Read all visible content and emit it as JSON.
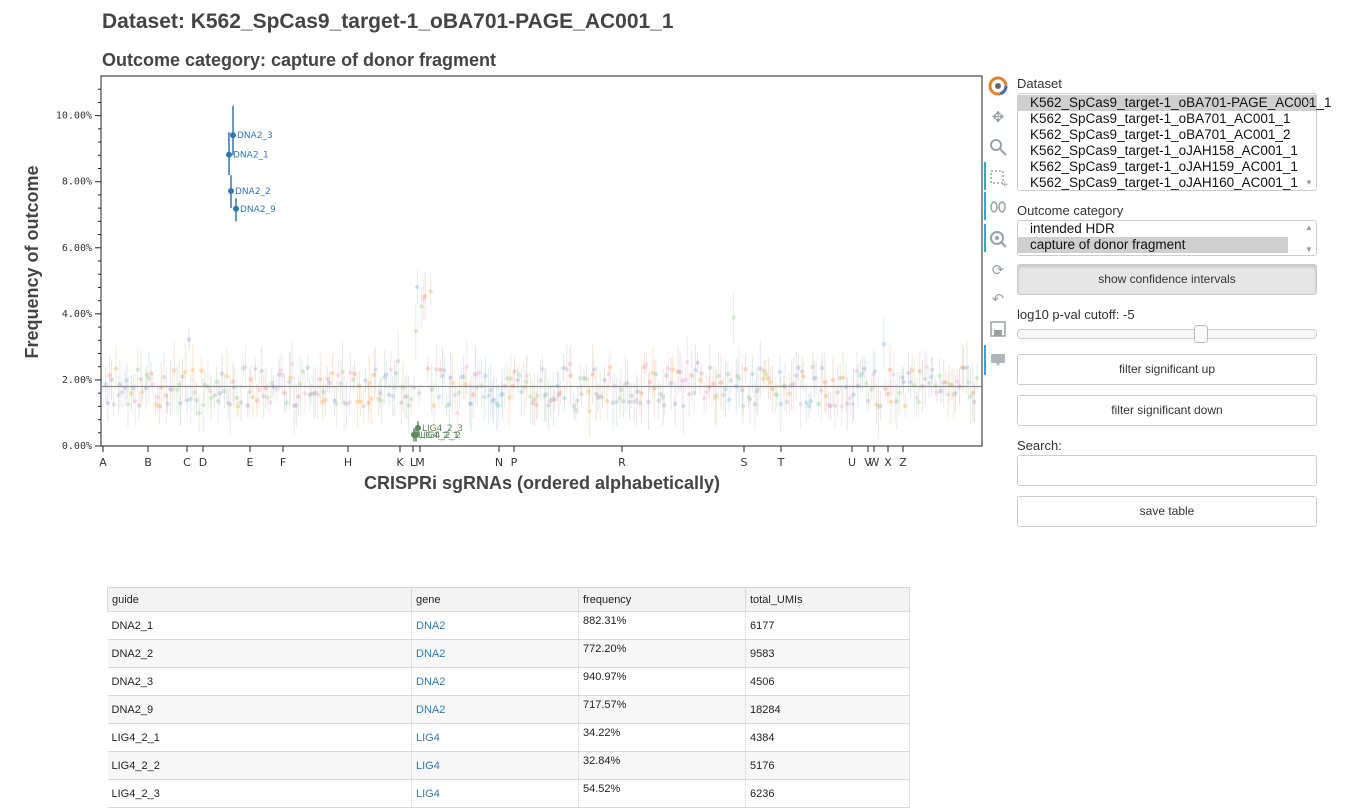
{
  "header": {
    "dataset_title": "Dataset: K562_SpCas9_target-1_oBA701-PAGE_AC001_1",
    "outcome_title": "Outcome category: capture of donor fragment"
  },
  "chart_data": {
    "type": "scatter",
    "ylabel": "Frequency of outcome",
    "xlabel": "CRISPRi sgRNAs (ordered alphabetically)",
    "ylim": [
      0.0,
      11.2
    ],
    "yticks": [
      "0.00%",
      "2.00%",
      "4.00%",
      "6.00%",
      "8.00%",
      "10.00%"
    ],
    "x_letter_ticks": [
      "A",
      "B",
      "C",
      "D",
      "E",
      "F",
      "H",
      "K",
      "L",
      "M",
      "N",
      "P",
      "R",
      "S",
      "T",
      "U",
      "V",
      "W",
      "X",
      "Z"
    ],
    "baseline": 1.8,
    "highlighted_up": [
      {
        "label": "DNA2_3",
        "y": 9.41,
        "ci": [
          8.8,
          10.3
        ]
      },
      {
        "label": "DNA2_1",
        "y": 8.82,
        "ci": [
          8.2,
          9.5
        ]
      },
      {
        "label": "DNA2_2",
        "y": 7.72,
        "ci": [
          7.2,
          8.2
        ]
      },
      {
        "label": "DNA2_9",
        "y": 7.18,
        "ci": [
          6.8,
          7.5
        ]
      }
    ],
    "highlighted_down": [
      {
        "label": "LIG4_2_3",
        "y": 0.55
      },
      {
        "label": "LIG4_2_1",
        "y": 0.34
      },
      {
        "label": "LIG4_2_2",
        "y": 0.33
      }
    ],
    "grid": false,
    "colors": {
      "up": "#2f78b7",
      "down": "#5d8a5a",
      "baseline": "#8a8a8a"
    }
  },
  "toolbar": {
    "icons": [
      "bokeh-logo-icon",
      "pan-icon",
      "box-zoom-icon",
      "box-select-icon",
      "lasso-icon",
      "wheel-zoom-icon",
      "reset-icon",
      "undo-icon",
      "save-icon",
      "hover-icon"
    ]
  },
  "sidebar": {
    "dataset_label": "Dataset",
    "datasets": [
      "K562_SpCas9_target-1_oBA701-PAGE_AC001_1",
      "K562_SpCas9_target-1_oBA701_AC001_1",
      "K562_SpCas9_target-1_oBA701_AC001_2",
      "K562_SpCas9_target-1_oJAH158_AC001_1",
      "K562_SpCas9_target-1_oJAH159_AC001_1",
      "K562_SpCas9_target-1_oJAH160_AC001_1"
    ],
    "outcome_label": "Outcome category",
    "outcomes": [
      "intended HDR",
      "capture of donor fragment"
    ],
    "ci_button": "show confidence intervals",
    "pval_label": "log10 p-val cutoff:",
    "pval_value": "-5",
    "pval_slider_fraction": 0.62,
    "filter_up": "filter significant up",
    "filter_down": "filter significant down",
    "search_label": "Search:",
    "search_value": "",
    "save_table": "save table"
  },
  "table": {
    "columns": [
      "guide",
      "gene",
      "frequency",
      "total_UMIs"
    ],
    "rows": [
      {
        "guide": "DNA2_1",
        "gene": "DNA2",
        "frequency": "882.31%",
        "total_UMIs": "6177"
      },
      {
        "guide": "DNA2_2",
        "gene": "DNA2",
        "frequency": "772.20%",
        "total_UMIs": "9583"
      },
      {
        "guide": "DNA2_3",
        "gene": "DNA2",
        "frequency": "940.97%",
        "total_UMIs": "4506"
      },
      {
        "guide": "DNA2_9",
        "gene": "DNA2",
        "frequency": "717.57%",
        "total_UMIs": "18284"
      },
      {
        "guide": "LIG4_2_1",
        "gene": "LIG4",
        "frequency": "34.22%",
        "total_UMIs": "4384"
      },
      {
        "guide": "LIG4_2_2",
        "gene": "LIG4",
        "frequency": "32.84%",
        "total_UMIs": "5176"
      },
      {
        "guide": "LIG4_2_3",
        "gene": "LIG4",
        "frequency": "54.52%",
        "total_UMIs": "6236"
      }
    ]
  }
}
